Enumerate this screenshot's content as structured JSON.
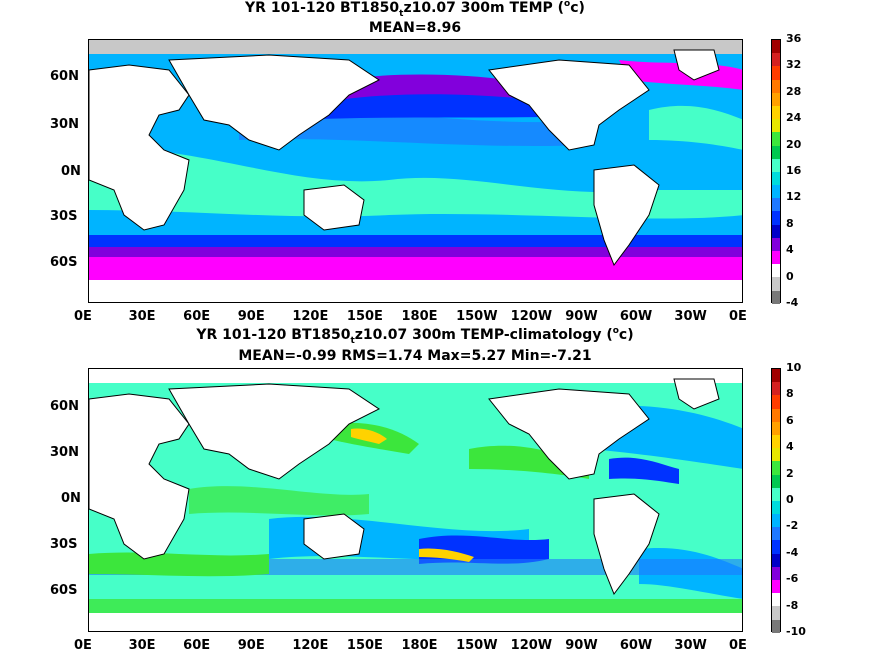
{
  "panels": [
    {
      "id": "top",
      "title_parts": {
        "a": "YR 101-120 BT1850",
        "sub": "t",
        "b": "z10.07 300m TEMP (",
        "sup": "o",
        "c": "c)"
      },
      "stats": "MEAN=8.96",
      "colorbar_labels": [
        "36",
        "32",
        "28",
        "24",
        "20",
        "16",
        "12",
        "8",
        "4",
        "0",
        "-4"
      ],
      "colorbar_colors": [
        "#a00000",
        "#d42020",
        "#ff3c00",
        "#ff7800",
        "#ffa000",
        "#ffd200",
        "#e6e600",
        "#3ce63c",
        "#00c850",
        "#46ffc8",
        "#00dcdc",
        "#00b4ff",
        "#1e78ff",
        "#0032ff",
        "#0000c8",
        "#8200dc",
        "#ff00ff",
        "#ffffff",
        "#c8c8c8",
        "#787878"
      ],
      "dominant_colors": {
        "land": "#ffffff",
        "ocean_main": "#00b4ff",
        "ocean_warm": "#46ffc8",
        "south_cold": "#ff00ff",
        "south_band": "#0000c8",
        "ice": "#c8c8c8"
      }
    },
    {
      "id": "bottom",
      "title_parts": {
        "a": "YR 101-120 BT1850",
        "sub": "t",
        "b": "z10.07 300m TEMP-climatology (",
        "sup": "o",
        "c": "c)"
      },
      "stats": "MEAN=-0.99   RMS=1.74   Max=5.27   Min=-7.21",
      "colorbar_labels": [
        "10",
        "8",
        "6",
        "4",
        "2",
        "0",
        "-2",
        "-4",
        "-6",
        "-8",
        "-10"
      ],
      "colorbar_colors": [
        "#a00000",
        "#d42020",
        "#ff3c00",
        "#ff7800",
        "#ffa000",
        "#ffd200",
        "#e6e600",
        "#3ce63c",
        "#00c850",
        "#46ffc8",
        "#00dcdc",
        "#00b4ff",
        "#1e78ff",
        "#0032ff",
        "#0000c8",
        "#8200dc",
        "#ff00ff",
        "#ffffff",
        "#c8c8c8",
        "#787878"
      ],
      "dominant_colors": {
        "land": "#ffffff",
        "ocean_main": "#46ffc8",
        "ocean_neg": "#00b4ff",
        "ocean_pos": "#3ce63c"
      }
    }
  ],
  "lat_labels": [
    "60N",
    "30N",
    "0N",
    "30S",
    "60S"
  ],
  "lon_labels": [
    "0E",
    "30E",
    "60E",
    "90E",
    "120E",
    "150E",
    "180E",
    "150W",
    "120W",
    "90W",
    "60W",
    "30W",
    "0E"
  ]
}
